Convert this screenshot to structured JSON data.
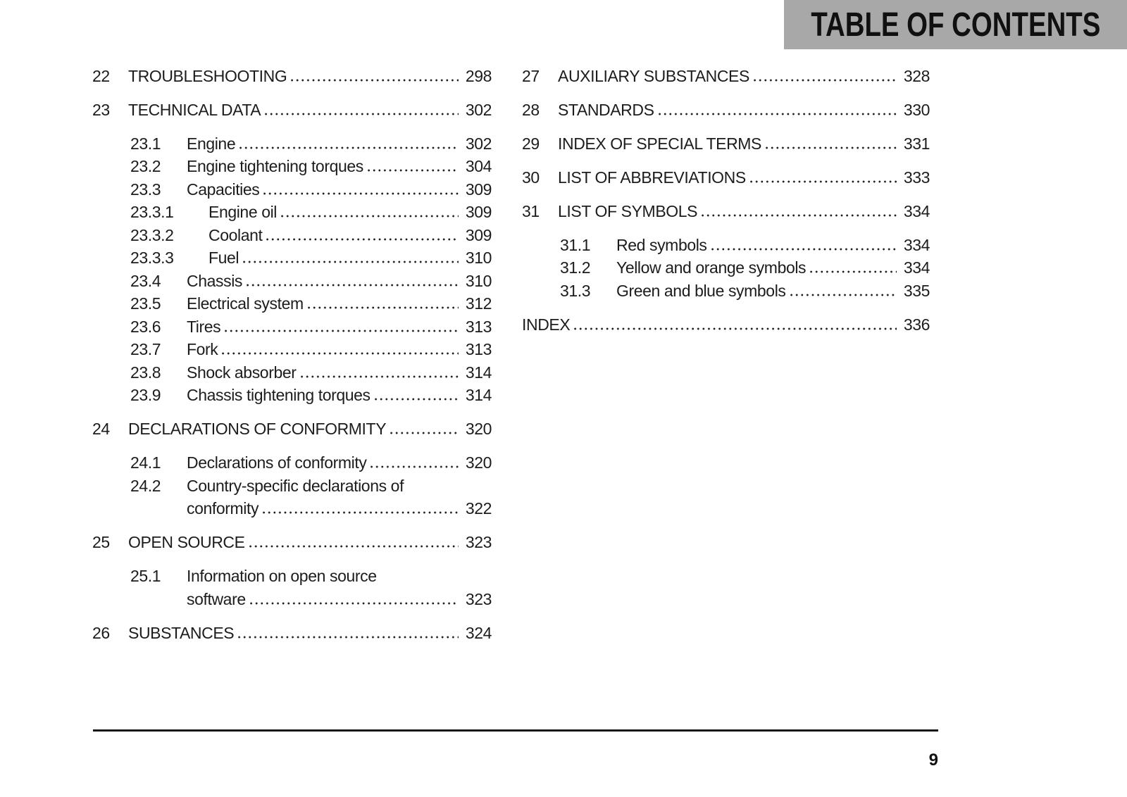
{
  "header": {
    "title": "TABLE OF CONTENTS"
  },
  "toc": {
    "left_column": [
      {
        "level": "chapter",
        "num": "22",
        "title": "TROUBLESHOOTING",
        "page": "298"
      },
      {
        "level": "chapter",
        "num": "23",
        "title": "TECHNICAL DATA",
        "page": "302"
      },
      {
        "level": "section",
        "num": "23.1",
        "title": "Engine",
        "page": "302"
      },
      {
        "level": "section",
        "num": "23.2",
        "title": "Engine tightening torques",
        "page": "304"
      },
      {
        "level": "section",
        "num": "23.3",
        "title": "Capacities",
        "page": "309"
      },
      {
        "level": "subsection",
        "num": "23.3.1",
        "title": "Engine oil",
        "page": "309"
      },
      {
        "level": "subsection",
        "num": "23.3.2",
        "title": "Coolant",
        "page": "309"
      },
      {
        "level": "subsection",
        "num": "23.3.3",
        "title": "Fuel",
        "page": "310"
      },
      {
        "level": "section",
        "num": "23.4",
        "title": "Chassis",
        "page": "310"
      },
      {
        "level": "section",
        "num": "23.5",
        "title": "Electrical system",
        "page": "312"
      },
      {
        "level": "section",
        "num": "23.6",
        "title": "Tires",
        "page": "313"
      },
      {
        "level": "section",
        "num": "23.7",
        "title": "Fork",
        "page": "313"
      },
      {
        "level": "section",
        "num": "23.8",
        "title": "Shock absorber",
        "page": "314"
      },
      {
        "level": "section",
        "num": "23.9",
        "title": "Chassis tightening torques",
        "page": "314"
      },
      {
        "level": "chapter",
        "num": "24",
        "title": "DECLARATIONS OF CONFORMITY",
        "page": "320"
      },
      {
        "level": "section",
        "num": "24.1",
        "title": "Declarations of conformity",
        "page": "320"
      },
      {
        "level": "section",
        "num": "24.2",
        "title": "Country-specific declarations of",
        "title_line2": "conformity",
        "page": "322"
      },
      {
        "level": "chapter",
        "num": "25",
        "title": "OPEN SOURCE",
        "page": "323"
      },
      {
        "level": "section",
        "num": "25.1",
        "title": "Information on open source",
        "title_line2": "software",
        "page": "323"
      },
      {
        "level": "chapter",
        "num": "26",
        "title": "SUBSTANCES",
        "page": "324"
      }
    ],
    "right_column": [
      {
        "level": "chapter",
        "num": "27",
        "title": "AUXILIARY SUBSTANCES",
        "page": "328"
      },
      {
        "level": "chapter",
        "num": "28",
        "title": "STANDARDS",
        "page": "330"
      },
      {
        "level": "chapter",
        "num": "29",
        "title": "INDEX OF SPECIAL TERMS",
        "page": "331"
      },
      {
        "level": "chapter",
        "num": "30",
        "title": "LIST OF ABBREVIATIONS",
        "page": "333"
      },
      {
        "level": "chapter",
        "num": "31",
        "title": "LIST OF SYMBOLS",
        "page": "334"
      },
      {
        "level": "section",
        "num": "31.1",
        "title": "Red symbols",
        "page": "334"
      },
      {
        "level": "section",
        "num": "31.2",
        "title": "Yellow and orange symbols",
        "page": "334"
      },
      {
        "level": "section",
        "num": "31.3",
        "title": "Green and blue symbols",
        "page": "335"
      },
      {
        "level": "index",
        "num": "",
        "title": "INDEX",
        "page": "336"
      }
    ]
  },
  "footer": {
    "page_number": "9"
  },
  "colors": {
    "banner_background": "#a8a8a8",
    "banner_text": "#101010",
    "body_text": "#1c1c1c",
    "rule": "#161616",
    "page_background": "#ffffff"
  }
}
